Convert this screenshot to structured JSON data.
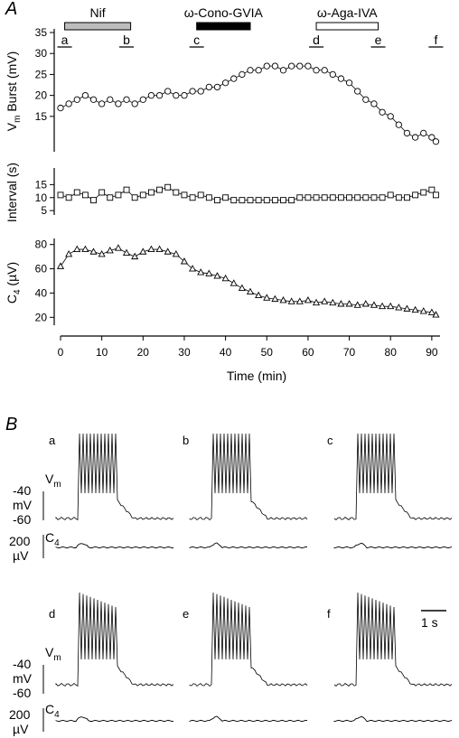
{
  "figure": {
    "panel_a_label": "A",
    "panel_b_label": "B"
  },
  "drugs": [
    {
      "label": "Nif",
      "start": 0,
      "end": 17,
      "fill": "#bdbdbd"
    },
    {
      "label": "ω-Cono-GVIA",
      "start": 33,
      "end": 46,
      "fill": "#000000"
    },
    {
      "label": "ω-Aga-IVA",
      "start": 62,
      "end": 77,
      "fill": "#ffffff"
    }
  ],
  "timepoints": [
    {
      "label": "a",
      "t": 1
    },
    {
      "label": "b",
      "t": 16
    },
    {
      "label": "c",
      "t": 33
    },
    {
      "label": "d",
      "t": 62
    },
    {
      "label": "e",
      "t": 77
    },
    {
      "label": "f",
      "t": 91
    }
  ],
  "chart_data": [
    {
      "type": "scatter",
      "marker": "circle",
      "ylabel": "V_m Burst (mV)",
      "ylabel_main": "V",
      "ylabel_sub": "m",
      "ylabel_rest": " Burst (mV)",
      "yticks": [
        15,
        20,
        25,
        30,
        35
      ],
      "ylim": [
        7,
        35
      ],
      "x": [
        0,
        2,
        4,
        6,
        8,
        10,
        12,
        14,
        16,
        18,
        20,
        22,
        24,
        26,
        28,
        30,
        32,
        34,
        36,
        38,
        40,
        42,
        44,
        46,
        48,
        50,
        52,
        54,
        56,
        58,
        60,
        62,
        64,
        66,
        68,
        70,
        72,
        74,
        76,
        78,
        80,
        82,
        84,
        86,
        88,
        90,
        91
      ],
      "y": [
        17,
        18,
        19,
        20,
        19,
        18,
        19,
        18,
        19,
        18,
        19,
        20,
        20,
        21,
        20,
        20,
        21,
        21,
        22,
        22,
        23,
        24,
        25,
        26,
        26,
        27,
        27,
        26,
        27,
        27,
        27,
        26,
        26,
        25,
        24,
        23,
        21,
        19,
        18,
        16,
        15,
        13,
        11,
        10,
        11,
        10,
        9
      ]
    },
    {
      "type": "scatter",
      "marker": "square",
      "ylabel": "Interval (s)",
      "yticks": [
        5,
        10,
        15
      ],
      "ylim": [
        4,
        20
      ],
      "x": [
        0,
        2,
        4,
        6,
        8,
        10,
        12,
        14,
        16,
        18,
        20,
        22,
        24,
        26,
        28,
        30,
        32,
        34,
        36,
        38,
        40,
        42,
        44,
        46,
        48,
        50,
        52,
        54,
        56,
        58,
        60,
        62,
        64,
        66,
        68,
        70,
        72,
        74,
        76,
        78,
        80,
        82,
        84,
        86,
        88,
        90,
        91
      ],
      "y": [
        11,
        10,
        12,
        11,
        9,
        12,
        10,
        11,
        13,
        10,
        11,
        12,
        13,
        14,
        12,
        11,
        10,
        11,
        10,
        9,
        10,
        9,
        9,
        9,
        9,
        9,
        9,
        9,
        9,
        10,
        10,
        10,
        10,
        10,
        10,
        10,
        10,
        10,
        10,
        10,
        11,
        10,
        10,
        11,
        12,
        13,
        11
      ]
    },
    {
      "type": "scatter",
      "marker": "triangle",
      "ylabel": "C_4 (µV)",
      "ylabel_main": "C",
      "ylabel_sub": "4",
      "ylabel_rest": " (µV)",
      "yticks": [
        20,
        40,
        60,
        80
      ],
      "ylim": [
        15,
        82
      ],
      "x": [
        0,
        2,
        4,
        6,
        8,
        10,
        12,
        14,
        16,
        18,
        20,
        22,
        24,
        26,
        28,
        30,
        32,
        34,
        36,
        38,
        40,
        42,
        44,
        46,
        48,
        50,
        52,
        54,
        56,
        58,
        60,
        62,
        64,
        66,
        68,
        70,
        72,
        74,
        76,
        78,
        80,
        82,
        84,
        86,
        88,
        90,
        91
      ],
      "y": [
        62,
        72,
        76,
        76,
        74,
        72,
        75,
        77,
        73,
        70,
        74,
        76,
        76,
        74,
        72,
        66,
        60,
        57,
        56,
        54,
        52,
        48,
        44,
        41,
        38,
        36,
        35,
        34,
        33,
        33,
        34,
        32,
        33,
        32,
        31,
        31,
        30,
        31,
        30,
        29,
        29,
        28,
        27,
        26,
        25,
        24,
        22
      ]
    }
  ],
  "xaxis": {
    "label": "Time (min)",
    "ticks": [
      0,
      10,
      20,
      30,
      40,
      50,
      60,
      70,
      80,
      90
    ],
    "range": [
      0,
      92
    ]
  },
  "traces": {
    "vm_label_main": "V",
    "vm_label_sub": "m",
    "c4_label_main": "C",
    "c4_label_sub": "4",
    "vm_scale_top": "-40",
    "vm_scale_unit": "mV",
    "vm_scale_bottom": "-60",
    "c4_scale_value": "200",
    "c4_scale_unit": "µV",
    "time_scale": "1 s"
  }
}
